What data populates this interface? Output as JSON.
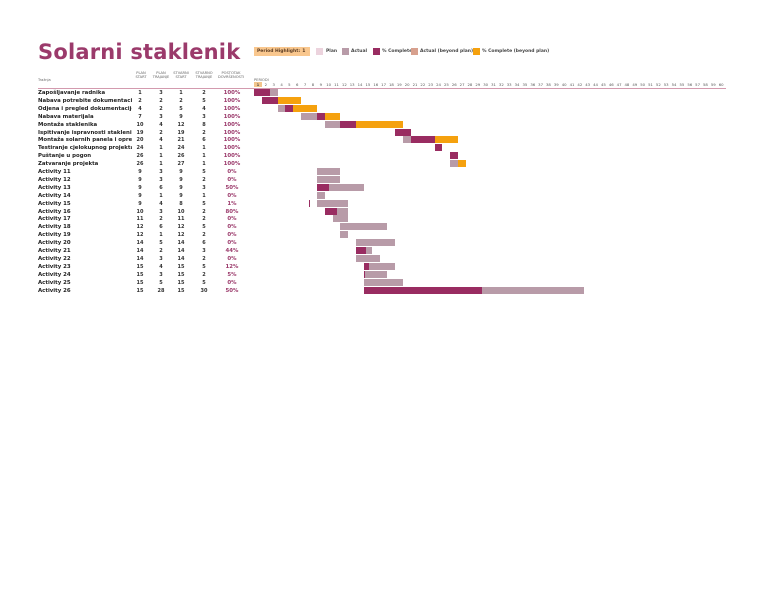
{
  "title": "Solarni staklenik",
  "legend": {
    "period_highlight_label": "Period Highlight:",
    "period_highlight_value": "1",
    "items": [
      {
        "label": "Plan",
        "color": "#ecd3dd"
      },
      {
        "label": "Actual",
        "color": "#b89ba8"
      },
      {
        "label": "% Complete",
        "color": "#992c61"
      },
      {
        "label": "Actual (beyond plan)",
        "color": "#d7a08e"
      },
      {
        "label": "% Complete (beyond plan)",
        "color": "#f5a10e"
      }
    ]
  },
  "columns": {
    "activity": "Tražnja",
    "plan_start": "PLAN START",
    "plan_duration": "PLAN TRAJANJE",
    "actual_start": "STVARNI START",
    "actual_duration": "STVARNO TRAJANJE",
    "percent_complete": "POSTOTAK DOVRŠENOSTI",
    "periods": "PERIODI"
  },
  "scale": {
    "start": 1,
    "end": 60,
    "highlight": 1
  },
  "colors": {
    "accent": "#9b3a6b",
    "plan": "#b89ba8",
    "complete": "#992c61",
    "beyond": "#f5a10e"
  },
  "rows": [
    {
      "name": "Zapošljavanje radnika",
      "ps": 1,
      "pd": 3,
      "as": 1,
      "ad": 2,
      "pct": "100%",
      "pctv": 1.0
    },
    {
      "name": "Nabava potrebite dokumentacije",
      "ps": 2,
      "pd": 2,
      "as": 2,
      "ad": 5,
      "pct": "100%",
      "pctv": 1.0
    },
    {
      "name": "Odjena i pregled dokumentacije",
      "ps": 4,
      "pd": 2,
      "as": 5,
      "ad": 4,
      "pct": "100%",
      "pctv": 1.0
    },
    {
      "name": "Nabava materijala",
      "ps": 7,
      "pd": 3,
      "as": 9,
      "ad": 3,
      "pct": "100%",
      "pctv": 1.0
    },
    {
      "name": "Montaža staklenika",
      "ps": 10,
      "pd": 4,
      "as": 12,
      "ad": 8,
      "pct": "100%",
      "pctv": 1.0
    },
    {
      "name": "Ispitivanje ispravnosti staklenika",
      "ps": 19,
      "pd": 2,
      "as": 19,
      "ad": 2,
      "pct": "100%",
      "pctv": 1.0
    },
    {
      "name": "Montaža solarnih panela i opreme",
      "ps": 20,
      "pd": 4,
      "as": 21,
      "ad": 6,
      "pct": "100%",
      "pctv": 1.0
    },
    {
      "name": "Testiranje cjelokupnog projekta",
      "ps": 24,
      "pd": 1,
      "as": 24,
      "ad": 1,
      "pct": "100%",
      "pctv": 1.0
    },
    {
      "name": "Puštanje u pogon",
      "ps": 26,
      "pd": 1,
      "as": 26,
      "ad": 1,
      "pct": "100%",
      "pctv": 1.0
    },
    {
      "name": "Zatvaranje projekta",
      "ps": 26,
      "pd": 1,
      "as": 27,
      "ad": 1,
      "pct": "100%",
      "pctv": 1.0
    },
    {
      "name": "Activity 11",
      "ps": 9,
      "pd": 3,
      "as": 9,
      "ad": 5,
      "pct": "0%",
      "pctv": 0
    },
    {
      "name": "Activity 12",
      "ps": 9,
      "pd": 3,
      "as": 9,
      "ad": 2,
      "pct": "0%",
      "pctv": 0
    },
    {
      "name": "Activity 13",
      "ps": 9,
      "pd": 6,
      "as": 9,
      "ad": 3,
      "pct": "50%",
      "pctv": 0.5
    },
    {
      "name": "Activity 14",
      "ps": 9,
      "pd": 1,
      "as": 9,
      "ad": 1,
      "pct": "0%",
      "pctv": 0
    },
    {
      "name": "Activity 15",
      "ps": 9,
      "pd": 4,
      "as": 8,
      "ad": 5,
      "pct": "1%",
      "pctv": 0.01
    },
    {
      "name": "Activity 16",
      "ps": 10,
      "pd": 3,
      "as": 10,
      "ad": 2,
      "pct": "80%",
      "pctv": 0.8
    },
    {
      "name": "Activity 17",
      "ps": 11,
      "pd": 2,
      "as": 11,
      "ad": 2,
      "pct": "0%",
      "pctv": 0
    },
    {
      "name": "Activity 18",
      "ps": 12,
      "pd": 6,
      "as": 12,
      "ad": 5,
      "pct": "0%",
      "pctv": 0
    },
    {
      "name": "Activity 19",
      "ps": 12,
      "pd": 1,
      "as": 12,
      "ad": 2,
      "pct": "0%",
      "pctv": 0
    },
    {
      "name": "Activity 20",
      "ps": 14,
      "pd": 5,
      "as": 14,
      "ad": 6,
      "pct": "0%",
      "pctv": 0
    },
    {
      "name": "Activity 21",
      "ps": 14,
      "pd": 2,
      "as": 14,
      "ad": 3,
      "pct": "44%",
      "pctv": 0.44
    },
    {
      "name": "Activity 22",
      "ps": 14,
      "pd": 3,
      "as": 14,
      "ad": 2,
      "pct": "0%",
      "pctv": 0
    },
    {
      "name": "Activity 23",
      "ps": 15,
      "pd": 4,
      "as": 15,
      "ad": 5,
      "pct": "12%",
      "pctv": 0.12
    },
    {
      "name": "Activity 24",
      "ps": 15,
      "pd": 3,
      "as": 15,
      "ad": 2,
      "pct": "5%",
      "pctv": 0.05
    },
    {
      "name": "Activity 25",
      "ps": 15,
      "pd": 5,
      "as": 15,
      "ad": 5,
      "pct": "0%",
      "pctv": 0
    },
    {
      "name": "Activity 26",
      "ps": 15,
      "pd": 28,
      "as": 15,
      "ad": 30,
      "pct": "50%",
      "pctv": 0.5
    }
  ]
}
